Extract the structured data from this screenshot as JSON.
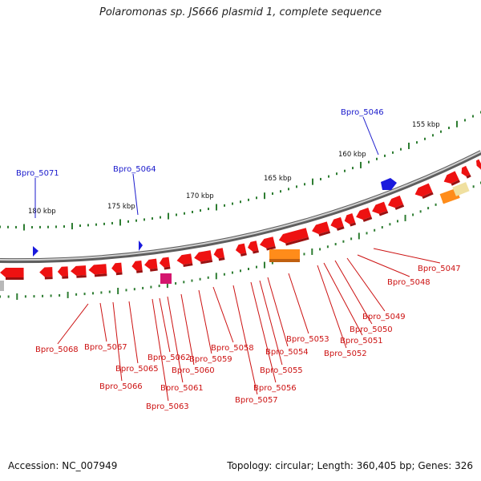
{
  "title": "Polaromonas sp. JS666 plasmid 1, complete sequence",
  "footer": {
    "accession": "Accession: NC_007949",
    "topology": "Topology: circular; Length: 360,405 bp; Genes: 326"
  },
  "colors": {
    "backbone": "#8c8c8c",
    "forward_gene": "#ee1111",
    "reverse_gene_label": "#cc1111",
    "highlight_gene_label": "#1a1acc",
    "tick": "#2e7d32",
    "orange_gene": "#ff8c1a",
    "magenta_gene": "#d4166e",
    "pale_gene": "#f0e0a0",
    "gray_gene": "#b8b8b8"
  },
  "scale_labels": [
    "155 kbp",
    "160 kbp",
    "165 kbp",
    "170 kbp",
    "175 kbp",
    "180 kbp"
  ],
  "blue_labels": [
    "Bpro_5046",
    "Bpro_5064",
    "Bpro_5071"
  ],
  "red_labels": [
    "Bpro_5047",
    "Bpro_5048",
    "Bpro_5049",
    "Bpro_5050",
    "Bpro_5051",
    "Bpro_5052",
    "Bpro_5053",
    "Bpro_5054",
    "Bpro_5055",
    "Bpro_5056",
    "Bpro_5057",
    "Bpro_5058",
    "Bpro_5059",
    "Bpro_5060",
    "Bpro_5061",
    "Bpro_5062",
    "Bpro_5063",
    "Bpro_5065",
    "Bpro_5066",
    "Bpro_5067",
    "Bpro_5068"
  ]
}
